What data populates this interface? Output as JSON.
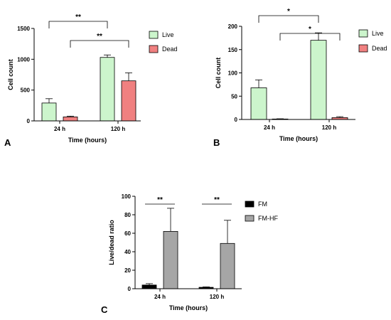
{
  "chart_data": [
    {
      "type": "bar",
      "panel": "A",
      "categories": [
        "24 h",
        "120 h"
      ],
      "series": [
        {
          "name": "Live",
          "values": [
            290,
            1030
          ],
          "errors": [
            70,
            40
          ]
        },
        {
          "name": "Dead",
          "values": [
            65,
            650
          ],
          "errors": [
            12,
            130
          ]
        }
      ],
      "xlabel": "Time (hours)",
      "ylabel": "Cell count",
      "ylim": [
        0,
        1500
      ],
      "yticks": [
        "0",
        "500",
        "1000",
        "1500"
      ],
      "significance": [
        {
          "label": "**",
          "from": [
            0,
            0
          ],
          "to": [
            1,
            0
          ]
        },
        {
          "label": "**",
          "from": [
            0,
            1
          ],
          "to": [
            1,
            1
          ]
        }
      ],
      "legend_position": "top-right",
      "grid": false
    },
    {
      "type": "bar",
      "panel": "B",
      "categories": [
        "24 h",
        "120 h"
      ],
      "series": [
        {
          "name": "Live",
          "values": [
            68,
            170
          ],
          "errors": [
            17,
            16
          ]
        },
        {
          "name": "Dead",
          "values": [
            1,
            4
          ],
          "errors": [
            0.5,
            2
          ]
        }
      ],
      "xlabel": "Time (hours)",
      "ylabel": "Cell count",
      "ylim": [
        0,
        200
      ],
      "yticks": [
        "0",
        "50",
        "100",
        "150",
        "200"
      ],
      "significance": [
        {
          "label": "*",
          "from": [
            0,
            0
          ],
          "to": [
            1,
            0
          ]
        },
        {
          "label": "*",
          "from": [
            0,
            1
          ],
          "to": [
            1,
            1
          ]
        }
      ],
      "legend_position": "top-right",
      "grid": false
    },
    {
      "type": "bar",
      "panel": "C",
      "categories": [
        "24 h",
        "120 h"
      ],
      "series": [
        {
          "name": "FM",
          "values": [
            4,
            1.5
          ],
          "errors": [
            1.5,
            0.5
          ]
        },
        {
          "name": "FM-HF",
          "values": [
            62,
            49
          ],
          "errors": [
            25,
            25
          ]
        }
      ],
      "xlabel": "Time (hours)",
      "ylabel": "Live/dead ratio",
      "ylim": [
        0,
        100
      ],
      "yticks": [
        "0",
        "20",
        "40",
        "60",
        "80",
        "100"
      ],
      "significance": [
        {
          "label": "**",
          "from": [
            0,
            0
          ],
          "to": [
            0,
            1
          ]
        },
        {
          "label": "**",
          "from": [
            1,
            0
          ],
          "to": [
            1,
            1
          ]
        }
      ],
      "legend_position": "right",
      "grid": false
    }
  ],
  "colors": {
    "A": {
      "Live": "#ccf5cc",
      "Dead": "#f08080"
    },
    "B": {
      "Live": "#ccf5cc",
      "Dead": "#f08080"
    },
    "C": {
      "FM": "#000000",
      "FM-HF": "#a6a6a6"
    }
  }
}
